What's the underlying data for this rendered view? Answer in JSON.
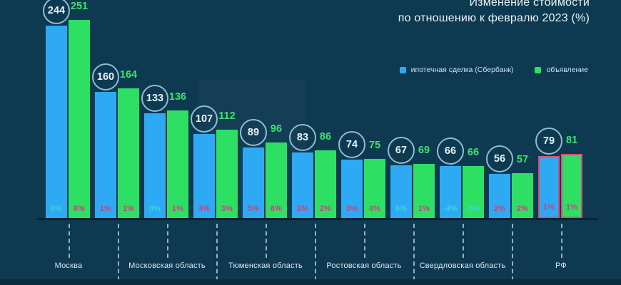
{
  "title": {
    "line1": "Изменение стоимости",
    "line2": "по отношению к февралю 2023 (%)"
  },
  "legend": {
    "deal_label": "ипотечная сделка (Сбербанк)",
    "listing_label": "объявление"
  },
  "colors": {
    "background": "#0e3a51",
    "bar_blue": "#2ea9f4",
    "bar_green": "#2de063",
    "pct_pink": "#c7447f",
    "pct_cyan": "#36d7de",
    "circle_stroke": "#a6d5e4",
    "value_green": "#3ce36f",
    "highlight_border": "#d94f7a"
  },
  "chart_data": {
    "type": "bar",
    "title": "Изменение стоимости по отношению к февралю 2023 (%)",
    "series_names": [
      "ипотечная сделка (Сбербанк)",
      "объявление"
    ],
    "legend_position": "top-right",
    "grid": false,
    "ylim": [
      0,
      260
    ],
    "note": "Paired bars: deal price (blue) vs listing price (green); % = change vs Feb 2023; last pair (РФ) highlighted",
    "groups": [
      {
        "label": "Москва",
        "deal": 244,
        "listing": 251,
        "deal_pct": "0%",
        "listing_pct": "8%",
        "deal_pct_color": "#36d7de",
        "listing_pct_color": "#c7447f",
        "highlight": false
      },
      {
        "label": "",
        "deal": 160,
        "listing": 164,
        "deal_pct": "1%",
        "listing_pct": "1%",
        "deal_pct_color": "#c7447f",
        "listing_pct_color": "#c7447f",
        "highlight": false
      },
      {
        "label": "Московская область",
        "deal": 133,
        "listing": 136,
        "deal_pct": "0%",
        "listing_pct": "1%",
        "deal_pct_color": "#36d7de",
        "listing_pct_color": "#c7447f",
        "highlight": false
      },
      {
        "label": "",
        "deal": 107,
        "listing": 112,
        "deal_pct": "3%",
        "listing_pct": "3%",
        "deal_pct_color": "#c7447f",
        "listing_pct_color": "#c7447f",
        "highlight": false
      },
      {
        "label": "Тюменская область",
        "deal": 89,
        "listing": 96,
        "deal_pct": "5%",
        "listing_pct": "6%",
        "deal_pct_color": "#c7447f",
        "listing_pct_color": "#c7447f",
        "highlight": false
      },
      {
        "label": "",
        "deal": 83,
        "listing": 86,
        "deal_pct": "1%",
        "listing_pct": "2%",
        "deal_pct_color": "#c7447f",
        "listing_pct_color": "#c7447f",
        "highlight": false
      },
      {
        "label": "Ростовская область",
        "deal": 74,
        "listing": 75,
        "deal_pct": "3%",
        "listing_pct": "4%",
        "deal_pct_color": "#c7447f",
        "listing_pct_color": "#c7447f",
        "highlight": false
      },
      {
        "label": "",
        "deal": 67,
        "listing": 69,
        "deal_pct": "0%",
        "listing_pct": "1%",
        "deal_pct_color": "#36d7de",
        "listing_pct_color": "#c7447f",
        "highlight": false
      },
      {
        "label": "Свердловская область",
        "deal": 66,
        "listing": 66,
        "deal_pct": "-4%",
        "listing_pct": "-5%",
        "deal_pct_color": "#36d7de",
        "listing_pct_color": "#36d7de",
        "highlight": false
      },
      {
        "label": "",
        "deal": 56,
        "listing": 57,
        "deal_pct": "2%",
        "listing_pct": "2%",
        "deal_pct_color": "#c7447f",
        "listing_pct_color": "#c7447f",
        "highlight": false
      },
      {
        "label": "РФ",
        "deal": 79,
        "listing": 81,
        "deal_pct": "1%",
        "listing_pct": "1%",
        "deal_pct_color": "#c7447f",
        "listing_pct_color": "#c7447f",
        "highlight": true
      }
    ]
  }
}
